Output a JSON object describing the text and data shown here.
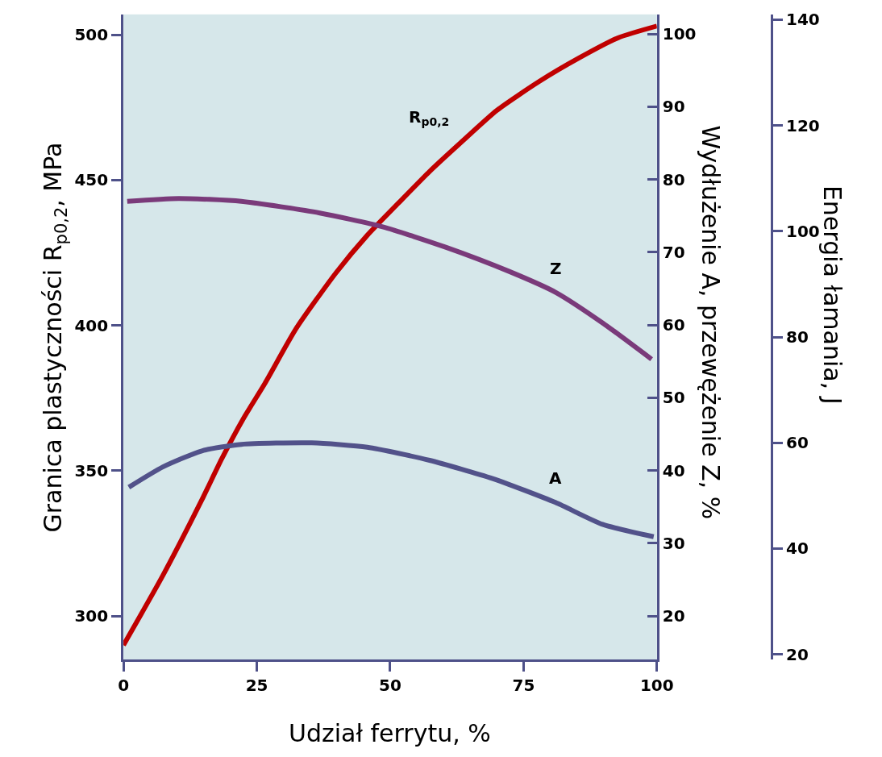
{
  "chart_data": {
    "type": "line",
    "xlabel": "Udział ferrytu, %",
    "ylabel": "Granica plastyczności R$_{p0,2}$, MPa",
    "y2label": "Wydłużenie A, przewężenie Z, %",
    "y3label": "Energia łamania, J",
    "xlim": [
      0,
      100
    ],
    "xticks": [
      0,
      25,
      50,
      75,
      100
    ],
    "ylim": [
      285,
      507
    ],
    "yticks": [
      300,
      350,
      400,
      450,
      500
    ],
    "y2lim": [
      14,
      102.7
    ],
    "y2ticks": [
      20,
      30,
      40,
      50,
      60,
      70,
      80,
      90,
      100
    ],
    "y3lim": [
      19,
      141
    ],
    "y3ticks": [
      20,
      40,
      60,
      80,
      100,
      120,
      140
    ],
    "grid": false,
    "legend": false,
    "series": [
      {
        "name": "R$_{p0,2}$",
        "color": "#c00000",
        "x": [
          0,
          7.4,
          14.7,
          18.4,
          22.5,
          26.5,
          32.4,
          39.8,
          45.7,
          51.5,
          57.4,
          63.3,
          70,
          78,
          85.4,
          92.8,
          100
        ],
        "values": [
          290,
          314,
          340,
          354,
          368,
          380,
          399,
          418,
          431,
          442,
          453,
          463,
          474,
          484,
          492,
          499,
          503
        ]
      },
      {
        "name": "Z",
        "color": "#7a3a7a",
        "axis": "y2",
        "x": [
          0.7,
          10.3,
          22.1,
          36.8,
          48.6,
          60.4,
          72.2,
          81,
          89.8,
          99
        ],
        "values": [
          77,
          77.4,
          77,
          75.4,
          73.5,
          70.7,
          67.4,
          64.5,
          60.3,
          55.3
        ]
      },
      {
        "name": "A",
        "color": "#52528a",
        "axis": "y2",
        "x": [
          1,
          7.4,
          14.7,
          22.1,
          35.3,
          45.7,
          57.4,
          69.2,
          81,
          89.8,
          99.4
        ],
        "values": [
          37.7,
          40.5,
          42.7,
          43.6,
          43.8,
          43.2,
          41.4,
          38.9,
          35.6,
          32.6,
          30.9
        ]
      }
    ]
  }
}
